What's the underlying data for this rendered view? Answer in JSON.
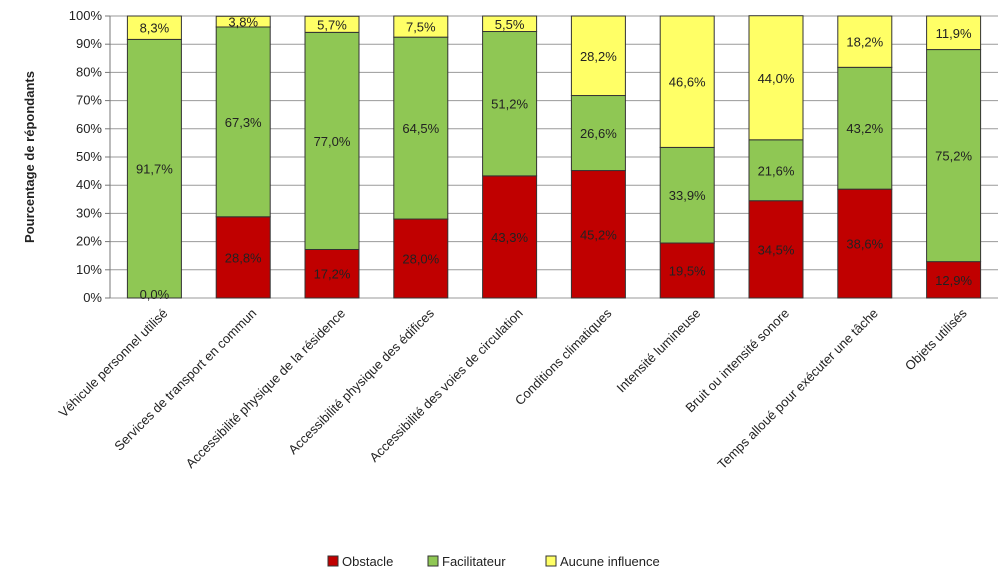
{
  "chart_data": {
    "type": "bar",
    "stacked": true,
    "percent": true,
    "ylabel": "Pourcentage de répondants",
    "ylim": [
      0,
      100
    ],
    "yticks": [
      "0%",
      "10%",
      "20%",
      "30%",
      "40%",
      "50%",
      "60%",
      "70%",
      "80%",
      "90%",
      "100%"
    ],
    "grid": true,
    "legend_position": "bottom",
    "categories": [
      "Véhicule personnel utilisé",
      "Services de transport en commun",
      "Accessibilité physique de la résidence",
      "Accessibilité physique des édifices",
      "Accessibilité des voies de circulation",
      "Conditions climatiques",
      "Intensité lumineuse",
      "Bruit ou intensité sonore",
      "Temps alloué pour exécuter une tâche",
      "Objets utilisés"
    ],
    "series": [
      {
        "name": "Obstacle",
        "color": "#c00000",
        "values": [
          0.0,
          28.8,
          17.2,
          28.0,
          43.3,
          45.2,
          19.5,
          34.5,
          38.6,
          12.9
        ],
        "labels": [
          "0,0%",
          "28,8%",
          "17,2%",
          "28,0%",
          "43,3%",
          "45,2%",
          "19,5%",
          "34,5%",
          "38,6%",
          "12,9%"
        ]
      },
      {
        "name": "Facilitateur",
        "color": "#8fc754",
        "values": [
          91.7,
          67.3,
          77.0,
          64.5,
          51.2,
          26.6,
          33.9,
          21.6,
          43.2,
          75.2
        ],
        "labels": [
          "91,7%",
          "67,3%",
          "77,0%",
          "64,5%",
          "51,2%",
          "26,6%",
          "33,9%",
          "21,6%",
          "43,2%",
          "75,2%"
        ]
      },
      {
        "name": "Aucune influence",
        "color": "#ffff66",
        "values": [
          8.3,
          3.8,
          5.7,
          7.5,
          5.5,
          28.2,
          46.6,
          44.0,
          18.2,
          11.9
        ],
        "labels": [
          "8,3%",
          "3,8%",
          "5,7%",
          "7,5%",
          "5,5%",
          "28,2%",
          "46,6%",
          "44,0%",
          "18,2%",
          "11,9%"
        ]
      }
    ]
  }
}
